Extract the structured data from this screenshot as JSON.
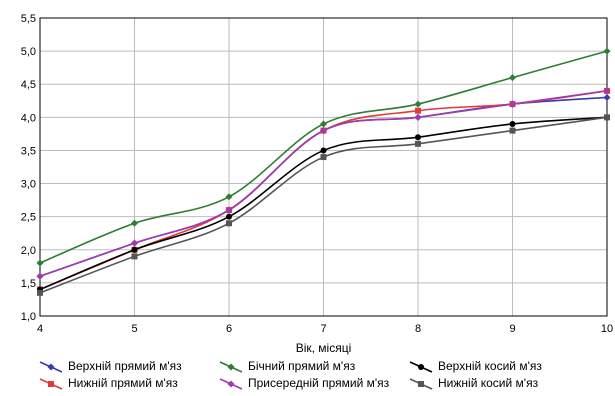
{
  "chart_data": {
    "type": "line",
    "title": "",
    "xlabel": "Вік, місяці",
    "ylabel": "",
    "x": [
      4,
      5,
      6,
      7,
      8,
      9,
      10
    ],
    "xlim": [
      4,
      10
    ],
    "ylim": [
      1.0,
      5.5
    ],
    "x_ticks": [
      "4",
      "5",
      "6",
      "7",
      "8",
      "9",
      "10"
    ],
    "y_ticks": [
      "1,0",
      "1,5",
      "2,0",
      "2,5",
      "3,0",
      "3,5",
      "4,0",
      "4,5",
      "5,0",
      "5,5"
    ],
    "grid": true,
    "legend_position": "bottom",
    "series": [
      {
        "name": "Верхній прямий м'яз",
        "color": "#3a3aa8",
        "marker": "diamond",
        "values": [
          1.6,
          2.1,
          2.6,
          3.8,
          4.0,
          4.2,
          4.3
        ]
      },
      {
        "name": "Нижній прямий м'яз",
        "color": "#e03a3a",
        "marker": "square",
        "values": [
          1.4,
          2.0,
          2.6,
          3.8,
          4.1,
          4.2,
          4.4
        ]
      },
      {
        "name": "Бічний прямий м'яз",
        "color": "#2e7d32",
        "marker": "diamond",
        "values": [
          1.8,
          2.4,
          2.8,
          3.9,
          4.2,
          4.6,
          5.0
        ]
      },
      {
        "name": "Присередній прямий м'яз",
        "color": "#a03ab0",
        "marker": "diamond",
        "values": [
          1.6,
          2.1,
          2.6,
          3.8,
          4.0,
          4.2,
          4.4
        ]
      },
      {
        "name": "Верхній косий м'яз",
        "color": "#000000",
        "marker": "circle",
        "values": [
          1.4,
          2.0,
          2.5,
          3.5,
          3.7,
          3.9,
          4.0
        ]
      },
      {
        "name": "Нижній косий м'яз",
        "color": "#555555",
        "marker": "square",
        "values": [
          1.35,
          1.9,
          2.4,
          3.4,
          3.6,
          3.8,
          4.0
        ]
      }
    ]
  }
}
